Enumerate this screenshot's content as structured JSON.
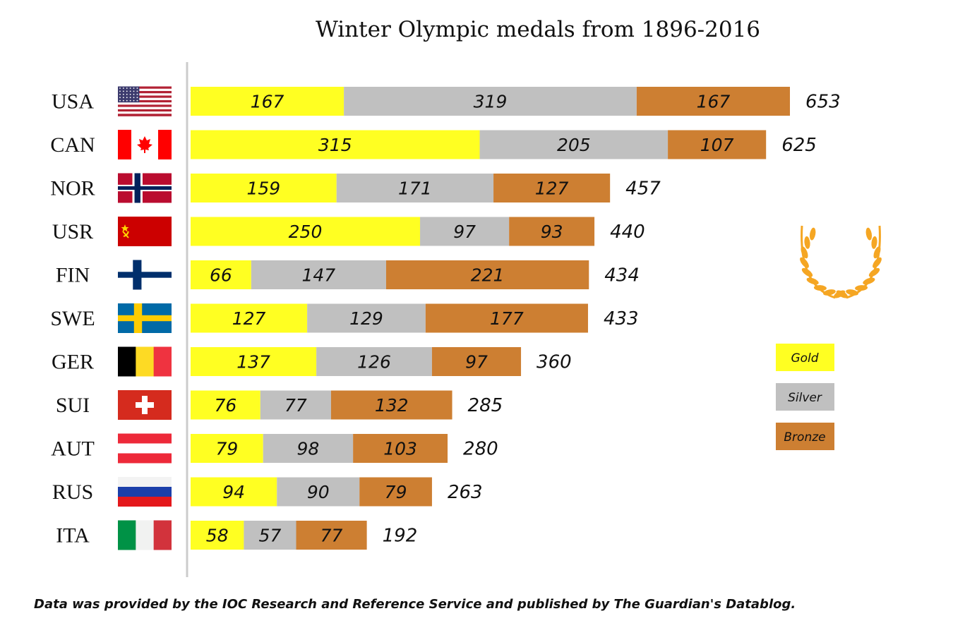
{
  "chart_data": {
    "type": "bar",
    "orientation": "horizontal",
    "stacked": true,
    "title": "Winter Olympic medals from 1896-2016",
    "categories": [
      "USA",
      "CAN",
      "NOR",
      "USR",
      "FIN",
      "SWE",
      "GER",
      "SUI",
      "AUT",
      "RUS",
      "ITA"
    ],
    "series": [
      {
        "name": "Gold",
        "color": "#ffff22",
        "values": [
          167,
          315,
          159,
          250,
          66,
          127,
          137,
          76,
          79,
          94,
          58
        ]
      },
      {
        "name": "Silver",
        "color": "#c0c0c0",
        "values": [
          319,
          205,
          171,
          97,
          147,
          129,
          126,
          77,
          98,
          90,
          57
        ]
      },
      {
        "name": "Bronze",
        "color": "#cd7f32",
        "values": [
          167,
          107,
          127,
          93,
          221,
          177,
          97,
          132,
          103,
          79,
          77
        ]
      }
    ],
    "totals": [
      653,
      625,
      457,
      440,
      434,
      433,
      360,
      285,
      280,
      263,
      192
    ],
    "flags": [
      "usa-flag",
      "canada-flag",
      "norway-flag",
      "ussr-flag",
      "finland-flag",
      "sweden-flag",
      "germany-flag",
      "switzerland-flag",
      "austria-flag",
      "russia-flag",
      "italy-flag"
    ],
    "legend": {
      "position": "right",
      "entries": [
        "Gold",
        "Silver",
        "Bronze"
      ]
    },
    "decoration": "laurel-wreath-icon",
    "grid": false
  },
  "footer": {
    "source_note": "Data was provided by the IOC Research and Reference Service and published by The Guardian's Datablog."
  }
}
